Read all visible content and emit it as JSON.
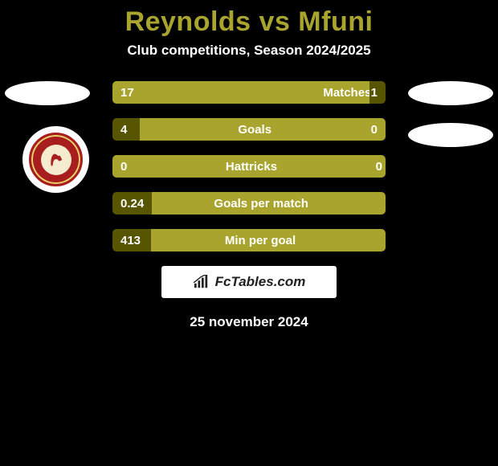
{
  "title": {
    "text": "Reynolds vs Mfuni",
    "color": "#a9a42d"
  },
  "subtitle": "Club competitions, Season 2024/2025",
  "colors": {
    "full_bar": "#a9a42d",
    "dark_segment": "#575500",
    "oval": "#ffffff",
    "badge_ring": "#a81e1e"
  },
  "stats": [
    {
      "label": "Matches",
      "left_val": "17",
      "right_val": "1",
      "left_pct": 78,
      "label_pct": 16,
      "right_pct": 6,
      "left_bg": "#a9a42d",
      "label_bg": "#a9a42d",
      "right_bg": "#575500"
    },
    {
      "label": "Goals",
      "left_val": "4",
      "right_val": "0",
      "left_pct": 11,
      "label_pct": 84,
      "right_pct": 5,
      "left_bg": "#575500",
      "label_bg": "#a9a42d",
      "right_bg": "#a9a42d"
    },
    {
      "label": "Hattricks",
      "left_val": "0",
      "right_val": "0",
      "left_pct": 5,
      "label_pct": 90,
      "right_pct": 5,
      "left_bg": "#a9a42d",
      "label_bg": "#a9a42d",
      "right_bg": "#a9a42d"
    },
    {
      "label": "Goals per match",
      "left_val": "0.24",
      "right_val": "",
      "left_pct": 15,
      "label_pct": 80,
      "right_pct": 5,
      "left_bg": "#575500",
      "label_bg": "#a9a42d",
      "right_bg": "#a9a42d"
    },
    {
      "label": "Min per goal",
      "left_val": "413",
      "right_val": "",
      "left_pct": 15,
      "label_pct": 80,
      "right_pct": 5,
      "left_bg": "#575500",
      "label_bg": "#a9a42d",
      "right_bg": "#a9a42d"
    }
  ],
  "brand": "FcTables.com",
  "date": "25 november 2024"
}
